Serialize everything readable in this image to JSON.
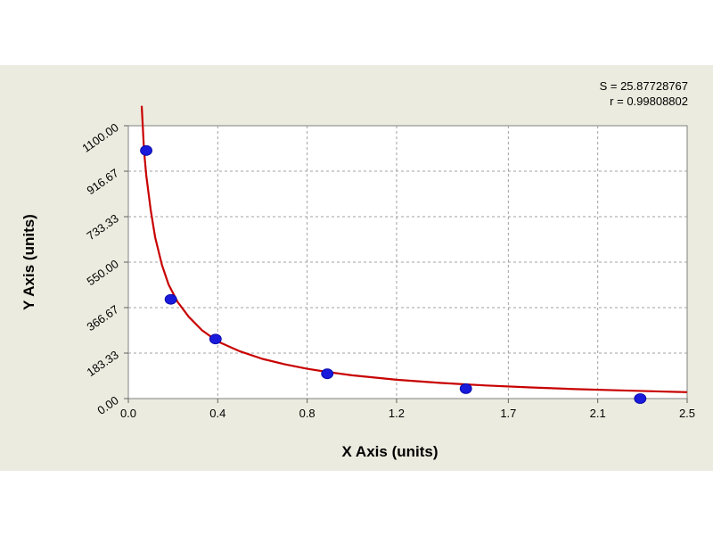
{
  "stats": {
    "s_line": "S = 25.87728767",
    "r_line": "r = 0.99808802"
  },
  "chart_data": {
    "type": "scatter",
    "xlabel": "X Axis (units)",
    "ylabel": "Y Axis (units)",
    "xlim": [
      0,
      2.5
    ],
    "ylim": [
      0,
      1100
    ],
    "x_ticks": [
      "0.0",
      "0.4",
      "0.8",
      "1.2",
      "1.7",
      "2.1",
      "2.5"
    ],
    "y_ticks": [
      "0.00",
      "183.33",
      "366.67",
      "550.00",
      "733.33",
      "916.67",
      "1100.00"
    ],
    "grid": true,
    "series": [
      {
        "kind": "points",
        "color": "#1a1adb",
        "points": [
          {
            "x": 0.08,
            "y": 1000
          },
          {
            "x": 0.19,
            "y": 400
          },
          {
            "x": 0.39,
            "y": 240
          },
          {
            "x": 0.89,
            "y": 100
          },
          {
            "x": 1.51,
            "y": 40
          },
          {
            "x": 2.29,
            "y": 0
          }
        ]
      },
      {
        "kind": "fit-curve",
        "color": "#c80000",
        "points": [
          {
            "x": 0.06,
            "y": 1180
          },
          {
            "x": 0.07,
            "y": 1000
          },
          {
            "x": 0.08,
            "y": 900
          },
          {
            "x": 0.1,
            "y": 760
          },
          {
            "x": 0.12,
            "y": 650
          },
          {
            "x": 0.15,
            "y": 540
          },
          {
            "x": 0.18,
            "y": 460
          },
          {
            "x": 0.22,
            "y": 390
          },
          {
            "x": 0.27,
            "y": 330
          },
          {
            "x": 0.33,
            "y": 275
          },
          {
            "x": 0.4,
            "y": 230
          },
          {
            "x": 0.5,
            "y": 190
          },
          {
            "x": 0.6,
            "y": 160
          },
          {
            "x": 0.7,
            "y": 138
          },
          {
            "x": 0.8,
            "y": 120
          },
          {
            "x": 0.9,
            "y": 106
          },
          {
            "x": 1.0,
            "y": 94
          },
          {
            "x": 1.2,
            "y": 76
          },
          {
            "x": 1.4,
            "y": 63
          },
          {
            "x": 1.6,
            "y": 53
          },
          {
            "x": 1.8,
            "y": 45
          },
          {
            "x": 2.0,
            "y": 38
          },
          {
            "x": 2.2,
            "y": 33
          },
          {
            "x": 2.4,
            "y": 28
          },
          {
            "x": 2.5,
            "y": 26
          }
        ]
      }
    ]
  }
}
